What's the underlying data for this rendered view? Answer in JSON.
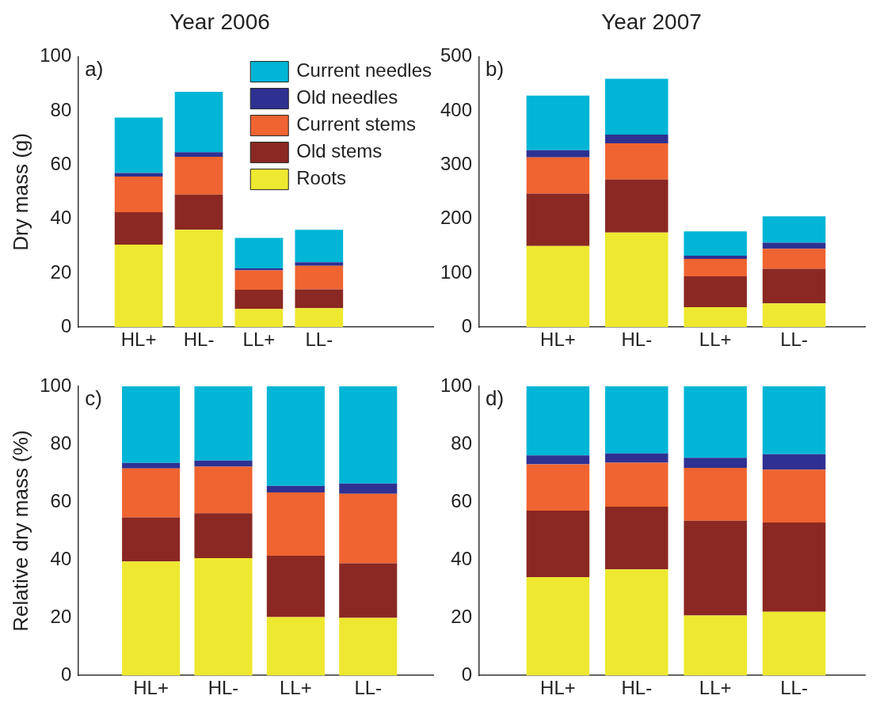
{
  "chart_data": [
    {
      "type": "bar",
      "stacked": true,
      "title": "Year 2006",
      "ylabel": "Dry mass (g)",
      "categories": [
        "HL+",
        "HL-",
        "LL+",
        "LL-"
      ],
      "ylim": [
        0,
        100
      ],
      "yticks": [
        0,
        20,
        40,
        60,
        80,
        100
      ],
      "legend": "top right",
      "annotations": [
        "a)"
      ],
      "series": [
        {
          "name": "Roots",
          "color": "#eee830",
          "values": [
            30.5,
            36,
            6.7,
            7
          ]
        },
        {
          "name": "Old stems",
          "color": "#8b2823",
          "values": [
            12,
            13,
            7.1,
            7
          ]
        },
        {
          "name": "Current stems",
          "color": "#ef6430",
          "values": [
            13.2,
            14,
            7.2,
            8.7
          ]
        },
        {
          "name": "Old needles",
          "color": "#2e3192",
          "values": [
            1.3,
            1.7,
            0.7,
            1.3
          ]
        },
        {
          "name": "Current needles",
          "color": "#00b5d6",
          "values": [
            20.5,
            22.3,
            11.3,
            12
          ]
        }
      ]
    },
    {
      "type": "bar",
      "stacked": true,
      "title": "Year 2007",
      "categories": [
        "HL+",
        "HL-",
        "LL+",
        "LL-"
      ],
      "ylim": [
        0,
        500
      ],
      "yticks": [
        0,
        100,
        200,
        300,
        400,
        500
      ],
      "annotations": [
        "b)"
      ],
      "series": [
        {
          "color": "#eee830",
          "values": [
            150,
            175,
            37,
            44
          ]
        },
        {
          "color": "#8b2823",
          "values": [
            97,
            98,
            57,
            64
          ]
        },
        {
          "color": "#ef6430",
          "values": [
            67,
            67,
            32,
            37
          ]
        },
        {
          "color": "#2e3192",
          "values": [
            13,
            16,
            6,
            11
          ]
        },
        {
          "color": "#00b5d6",
          "values": [
            101,
            103,
            45,
            49
          ]
        }
      ]
    },
    {
      "type": "bar",
      "stacked": true,
      "ylabel": "Relative dry mass (%)",
      "categories": [
        "HL+",
        "HL-",
        "LL+",
        "LL-"
      ],
      "ylim": [
        0,
        100
      ],
      "yticks": [
        0,
        20,
        40,
        60,
        80,
        100
      ],
      "annotations": [
        "c)"
      ],
      "series": [
        {
          "color": "#eee830",
          "values": [
            39.4,
            40.6,
            20.2,
            19.9
          ]
        },
        {
          "color": "#8b2823",
          "values": [
            15.3,
            15.5,
            21.2,
            18.9
          ]
        },
        {
          "color": "#ef6430",
          "values": [
            16.9,
            16.1,
            21.9,
            24
          ]
        },
        {
          "color": "#2e3192",
          "values": [
            1.9,
            2.1,
            2.3,
            3.6
          ]
        },
        {
          "color": "#00b5d6",
          "values": [
            26.5,
            25.7,
            34.4,
            33.6
          ]
        }
      ]
    },
    {
      "type": "bar",
      "stacked": true,
      "categories": [
        "HL+",
        "HL-",
        "LL+",
        "LL-"
      ],
      "ylim": [
        0,
        100
      ],
      "yticks": [
        0,
        20,
        40,
        60,
        80,
        100
      ],
      "annotations": [
        "d)"
      ],
      "series": [
        {
          "color": "#eee830",
          "values": [
            34,
            36.7,
            20.7,
            22
          ]
        },
        {
          "color": "#8b2823",
          "values": [
            23,
            21.7,
            32.8,
            30.9
          ]
        },
        {
          "color": "#ef6430",
          "values": [
            16,
            15.2,
            18.3,
            18.3
          ]
        },
        {
          "color": "#2e3192",
          "values": [
            3.1,
            3.2,
            3.5,
            5.3
          ]
        },
        {
          "color": "#00b5d6",
          "values": [
            23.9,
            23.2,
            24.7,
            23.5
          ]
        }
      ]
    }
  ]
}
